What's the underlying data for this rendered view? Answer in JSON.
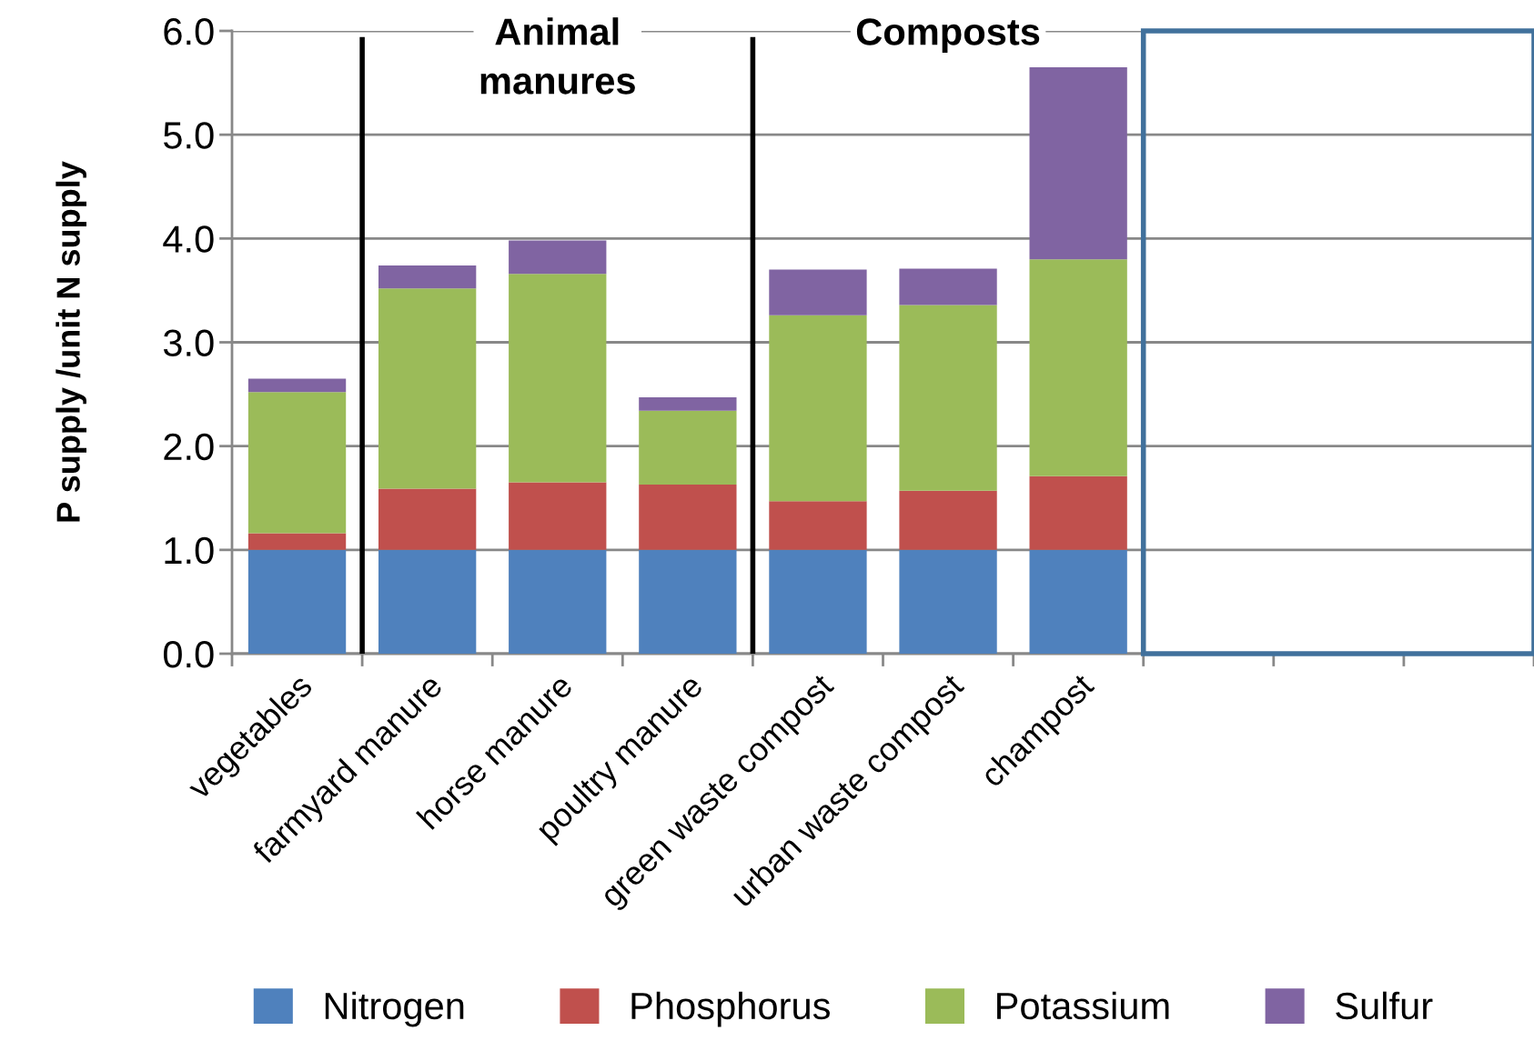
{
  "chart_data": {
    "type": "bar",
    "stacked": true,
    "ylabel": "P supply /unit N supply",
    "categories": [
      "vegetables",
      "farmyard manure",
      "horse manure",
      "poultry manure",
      "green waste compost",
      "urban waste compost",
      "champost",
      null,
      null,
      null
    ],
    "series": [
      {
        "name": "Nitrogen",
        "color": "#4f81bd",
        "values": [
          1.0,
          1.0,
          1.0,
          1.0,
          1.0,
          1.0,
          1.0,
          null,
          null,
          null
        ]
      },
      {
        "name": "Phosphorus",
        "color": "#c0504d",
        "values": [
          0.16,
          0.59,
          0.65,
          0.63,
          0.47,
          0.57,
          0.71,
          null,
          null,
          null
        ]
      },
      {
        "name": "Potassium",
        "color": "#9bbb59",
        "values": [
          1.36,
          1.93,
          2.01,
          0.71,
          1.79,
          1.79,
          2.09,
          null,
          null,
          null
        ]
      },
      {
        "name": "Sulfur",
        "color": "#8064a2",
        "values": [
          0.13,
          0.22,
          0.32,
          0.13,
          0.44,
          0.35,
          1.85,
          null,
          null,
          null
        ]
      }
    ],
    "ylim": [
      0,
      6
    ],
    "yticks": [
      {
        "value": 0,
        "label": "0.0"
      },
      {
        "value": 1,
        "label": "1.0"
      },
      {
        "value": 2,
        "label": "2.0"
      },
      {
        "value": 3,
        "label": "3.0"
      },
      {
        "value": 4,
        "label": "4.0"
      },
      {
        "value": 5,
        "label": "5.0"
      },
      {
        "value": 6,
        "label": "6.0"
      }
    ],
    "annotations": [
      "Animal\nmanures",
      "Composts"
    ],
    "grid": "y",
    "legend": "bottom"
  }
}
